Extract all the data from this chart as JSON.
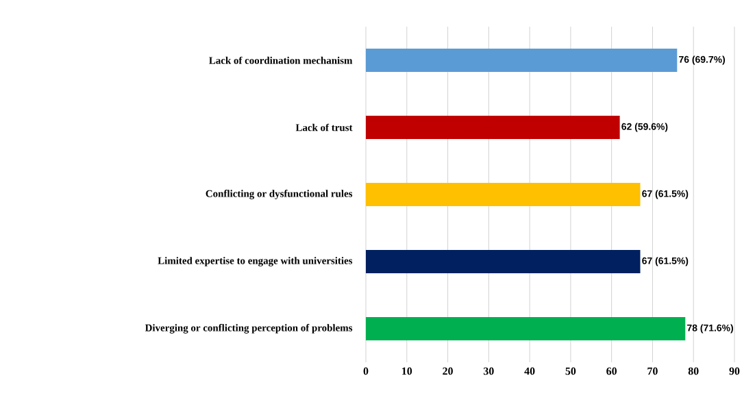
{
  "chart_data": {
    "type": "bar",
    "orientation": "horizontal",
    "categories": [
      "Lack of coordination mechanism",
      "Lack of trust",
      "Conflicting or dysfunctional rules",
      "Limited expertise to engage with universities",
      "Diverging or conflicting perception of problems"
    ],
    "values": [
      76,
      62,
      67,
      67,
      78
    ],
    "value_labels": [
      "76 (69.7%)",
      "62 (59.6%)",
      "67 (61.5%)",
      "67 (61.5%)",
      "78 (71.6%)"
    ],
    "colors": [
      "#5b9bd5",
      "#c00000",
      "#ffc000",
      "#002060",
      "#00b050"
    ],
    "xlim": [
      0,
      90
    ],
    "xticks": [
      0,
      10,
      20,
      30,
      40,
      50,
      60,
      70,
      80,
      90
    ],
    "grid": "x"
  }
}
